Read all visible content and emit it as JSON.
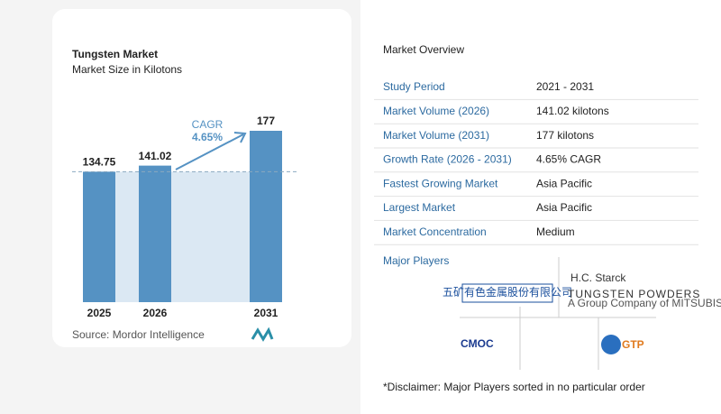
{
  "chart_data": {
    "type": "bar",
    "title": "Tungsten Market",
    "subtitle": "Market Size in Kilotons",
    "categories": [
      "2025",
      "2026",
      "2031"
    ],
    "values": [
      134.75,
      141.02,
      177
    ],
    "color": "#5592c3",
    "annotation": {
      "label": "CAGR",
      "value": "4.65%"
    },
    "source": "Source:  Mordor Intelligence"
  },
  "overview": {
    "title": "Market Overview",
    "rows": [
      [
        "Study Period",
        "2021 - 2031"
      ],
      [
        "Market Volume (2026)",
        "141.02 kilotons"
      ],
      [
        "Market Volume (2031)",
        "177 kilotons"
      ],
      [
        "Growth Rate (2026 - 2031)",
        "4.65% CAGR"
      ],
      [
        "Fastest Growing Market",
        "Asia Pacific"
      ],
      [
        "Largest Market",
        "Asia Pacific"
      ],
      [
        "Market Concentration",
        "Medium"
      ]
    ],
    "players_title": "Major Players",
    "players": [
      "五矿有色金属股份有限公司",
      "H.C. Starck",
      "TUNGSTEN POWDERS",
      "A Group Company of MITSUBISHI MATERIALS",
      "CMOC",
      "GTP"
    ],
    "disclaimer": "*Disclaimer: Major Players sorted in no particular order"
  }
}
